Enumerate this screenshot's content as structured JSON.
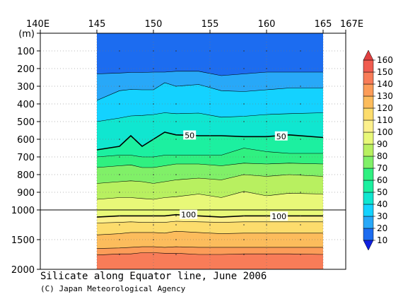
{
  "title": "Silicate along Equator line, June 2006",
  "credit": "(C) Japan Meteorological Agency",
  "chart_data": {
    "type": "heatmap",
    "title": "Silicate along Equator line, June 2006",
    "x_tick_labels": [
      "140E",
      "145",
      "150",
      "155",
      "160",
      "165",
      "167E"
    ],
    "x_ticks": [
      140,
      145,
      150,
      155,
      160,
      165,
      167
    ],
    "xlim": [
      140,
      167
    ],
    "data_xlim": [
      145,
      165
    ],
    "y_unit_label": "(m)",
    "y_ticks_upper": [
      0,
      100,
      200,
      300,
      400,
      500,
      600,
      700,
      800,
      900,
      1000
    ],
    "y_ticks_lower": [
      1500,
      2000
    ],
    "y_tick_labels": [
      "(m)",
      "100",
      "200",
      "300",
      "400",
      "500",
      "600",
      "700",
      "800",
      "900",
      "1000",
      "1500",
      "2000"
    ],
    "ylim": [
      0,
      2000
    ],
    "grid": true,
    "contour_interval": 10,
    "labeled_contours": [
      {
        "value": 50,
        "label": "50",
        "positions": [
          [
            153.2,
            578
          ],
          [
            161.3,
            583
          ]
        ]
      },
      {
        "value": 100,
        "label": "100",
        "positions": [
          [
            153.1,
            1080
          ],
          [
            161.1,
            1110
          ]
        ]
      }
    ],
    "x_nodes": [
      145,
      147,
      148,
      149,
      150,
      151,
      152,
      154,
      156,
      158,
      160,
      162,
      165
    ],
    "contours": [
      {
        "value": 20,
        "depths": [
          230,
          225,
          222,
          222,
          220,
          220,
          215,
          215,
          240,
          230,
          220,
          220,
          220
        ]
      },
      {
        "value": 30,
        "depths": [
          380,
          325,
          318,
          320,
          320,
          280,
          300,
          290,
          325,
          330,
          320,
          310,
          310
        ]
      },
      {
        "value": 40,
        "depths": [
          500,
          480,
          468,
          465,
          460,
          450,
          455,
          452,
          475,
          470,
          460,
          455,
          450
        ]
      },
      {
        "value": 50,
        "depths": [
          660,
          640,
          580,
          640,
          600,
          560,
          575,
          580,
          580,
          585,
          585,
          575,
          590
        ]
      },
      {
        "value": 60,
        "depths": [
          700,
          690,
          690,
          700,
          700,
          690,
          690,
          690,
          690,
          650,
          670,
          680,
          680
        ]
      },
      {
        "value": 70,
        "depths": [
          760,
          750,
          745,
          760,
          760,
          750,
          740,
          740,
          750,
          735,
          740,
          735,
          740
        ]
      },
      {
        "value": 80,
        "depths": [
          850,
          840,
          835,
          840,
          850,
          840,
          830,
          820,
          830,
          800,
          810,
          800,
          810
        ]
      },
      {
        "value": 90,
        "depths": [
          940,
          930,
          930,
          935,
          940,
          930,
          925,
          910,
          930,
          895,
          920,
          905,
          910
        ]
      },
      {
        "value": 100,
        "depths": [
          1120,
          1100,
          1100,
          1100,
          1100,
          1100,
          1080,
          1100,
          1120,
          1100,
          1100,
          1100,
          1100
        ]
      },
      {
        "value": 110,
        "depths": [
          1220,
          1210,
          1200,
          1210,
          1210,
          1210,
          1190,
          1200,
          1210,
          1200,
          1200,
          1200,
          1200
        ]
      },
      {
        "value": 120,
        "depths": [
          1420,
          1400,
          1380,
          1380,
          1380,
          1390,
          1360,
          1380,
          1400,
          1390,
          1390,
          1390,
          1390
        ]
      },
      {
        "value": 130,
        "depths": [
          1650,
          1640,
          1630,
          1620,
          1620,
          1630,
          1620,
          1630,
          1630,
          1630,
          1630,
          1630,
          1630
        ]
      },
      {
        "value": 140,
        "depths": [
          1760,
          1740,
          1740,
          1720,
          1720,
          1730,
          1730,
          1750,
          1750,
          1740,
          1740,
          1740,
          1750
        ]
      }
    ],
    "shallow_band_bottom": {
      "value": 10,
      "depth": 230
    },
    "colorbar": {
      "levels": [
        10,
        20,
        30,
        40,
        50,
        60,
        70,
        80,
        90,
        100,
        110,
        120,
        130,
        140,
        150,
        160
      ],
      "colors": [
        "#1020e0",
        "#1c6cf0",
        "#28a8f8",
        "#14d2ff",
        "#10e6d0",
        "#1cf0a0",
        "#30f080",
        "#80f068",
        "#b8f060",
        "#e8f878",
        "#fcf08c",
        "#fcdc6c",
        "#fcbc5c",
        "#fc9c58",
        "#f87c58",
        "#f05c50",
        "#e04040"
      ],
      "extend": "both"
    }
  }
}
